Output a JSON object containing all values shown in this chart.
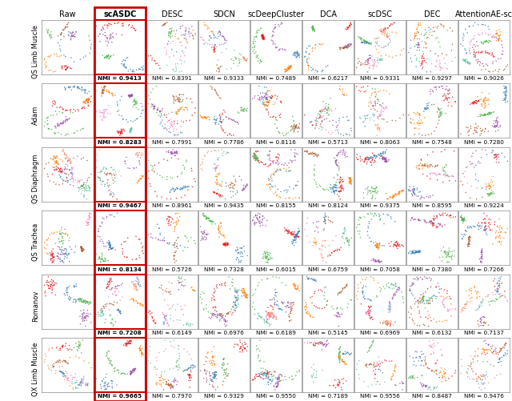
{
  "methods": [
    "Raw",
    "scASDC",
    "DESC",
    "SDCN",
    "scDeepCluster",
    "DCA",
    "scDSC",
    "DEC",
    "AttentionAE-sc"
  ],
  "datasets": [
    "QS Limb Muscle",
    "Adam",
    "QS Diaphragm",
    "QS Trachea",
    "Romanov",
    "QX Limb Muscle"
  ],
  "nmi_values": [
    [
      "NMI = 0.9413",
      "NMI = 0.8391",
      "NMI = 0.9333",
      "NMI = 0.7489",
      "NMI = 0.6217",
      "NMI = 0.9331",
      "NMI = 0.9297",
      "NMI = 0.9026"
    ],
    [
      "NMI = 0.8283",
      "NMI = 0.7991",
      "NMI = 0.7786",
      "NMI = 0.8116",
      "NMI = 0.5713",
      "NMI = 0.8063",
      "NMI = 0.7548",
      "NMI = 0.7280"
    ],
    [
      "NMI = 0.9467",
      "NMI = 0.8961",
      "NMI = 0.9435",
      "NMI = 0.8155",
      "NMI = 0.8124",
      "NMI = 0.9375",
      "NMI = 0.8595",
      "NMI = 0.9224"
    ],
    [
      "NMI = 0.8134",
      "NMI = 0.5726",
      "NMI = 0.7328",
      "NMI = 0.6015",
      "NMI = 0.6759",
      "NMI = 0.7058",
      "NMI = 0.7380",
      "NMI = 0.7266"
    ],
    [
      "NMI = 0.7208",
      "NMI = 0.6149",
      "NMI = 0.6976",
      "NMI = 0.6189",
      "NMI = 0.5145",
      "NMI = 0.6969",
      "NMI = 0.6132",
      "NMI = 0.7137"
    ],
    [
      "NMI = 0.9665",
      "NMI = 0.7970",
      "NMI = 0.9329",
      "NMI = 0.9550",
      "NMI = 0.7189",
      "NMI = 0.9556",
      "NMI = 0.8487",
      "NMI = 0.9476"
    ]
  ],
  "highlight_color": "#cc0000",
  "border_color": "#888888",
  "bg_color": "#ffffff",
  "header_fontsize": 7.0,
  "nmi_fontsize": 5.2,
  "ylabel_fontsize": 6.0,
  "fig_width": 6.4,
  "fig_height": 5.01
}
